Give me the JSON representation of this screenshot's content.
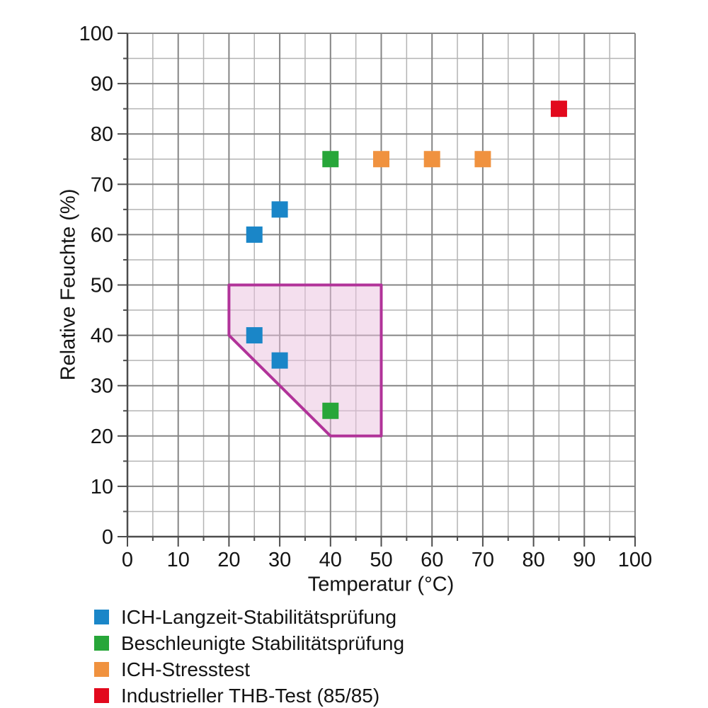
{
  "chart_data": {
    "type": "scatter",
    "title": "",
    "xlabel": "Temperatur (°C)",
    "ylabel": "Relative Feuchte (%)",
    "xlim": [
      0,
      100
    ],
    "ylim": [
      0,
      100
    ],
    "major_step": 10,
    "minor_step": 5,
    "grid": true,
    "legend_position": "bottom-left",
    "marker_shape": "square",
    "series": [
      {
        "name": "ICH-Langzeit-Stabilitätsprüfung",
        "color": "#1a86c8",
        "points": [
          [
            25,
            60
          ],
          [
            30,
            65
          ],
          [
            25,
            40
          ],
          [
            30,
            35
          ]
        ]
      },
      {
        "name": "Beschleunigte Stabilitätsprüfung",
        "color": "#27a639",
        "points": [
          [
            40,
            75
          ],
          [
            40,
            25
          ]
        ]
      },
      {
        "name": "ICH-Stresstest",
        "color": "#f0923f",
        "points": [
          [
            50,
            75
          ],
          [
            60,
            75
          ],
          [
            70,
            75
          ]
        ]
      },
      {
        "name": "Industrieller THB-Test (85/85)",
        "color": "#e2091d",
        "points": [
          [
            85,
            85
          ]
        ]
      }
    ],
    "highlight_region": {
      "points": [
        [
          20,
          50
        ],
        [
          50,
          50
        ],
        [
          50,
          20
        ],
        [
          40,
          20
        ],
        [
          20,
          40
        ]
      ],
      "fill": "#eac0de",
      "fill_opacity": 0.5,
      "stroke": "#b13399",
      "stroke_width": 4
    }
  },
  "axes": {
    "x_tick_labels": [
      "0",
      "10",
      "20",
      "30",
      "40",
      "50",
      "60",
      "70",
      "80",
      "90",
      "100"
    ],
    "y_tick_labels": [
      "0",
      "10",
      "20",
      "30",
      "40",
      "50",
      "60",
      "70",
      "80",
      "90",
      "100"
    ]
  },
  "legend": {
    "items": [
      {
        "label": "ICH-Langzeit-Stabilitätsprüfung",
        "color": "#1a86c8"
      },
      {
        "label": "Beschleunigte Stabilitätsprüfung",
        "color": "#27a639"
      },
      {
        "label": "ICH-Stresstest",
        "color": "#f0923f"
      },
      {
        "label": "Industrieller THB-Test (85/85)",
        "color": "#e2091d"
      }
    ]
  },
  "style_colors": {
    "major_grid": "#858585",
    "minor_grid": "#b4b4b4",
    "axis_line": "#4c4c4c",
    "tick_label": "#141414"
  }
}
